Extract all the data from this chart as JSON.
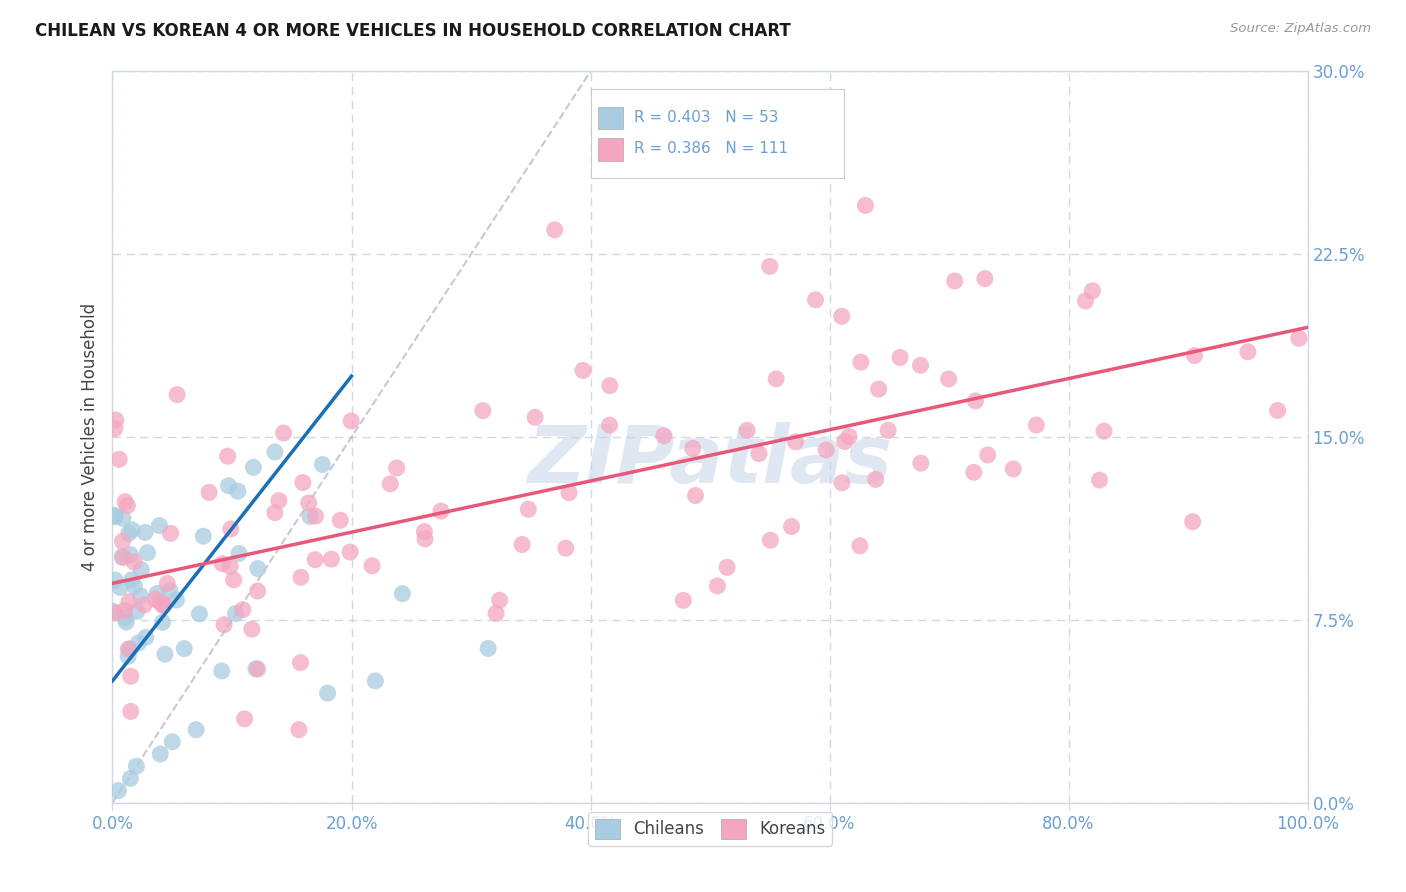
{
  "title": "CHILEAN VS KOREAN 4 OR MORE VEHICLES IN HOUSEHOLD CORRELATION CHART",
  "source": "Source: ZipAtlas.com",
  "ylabel_label": "4 or more Vehicles in Household",
  "legend_label1": "Chileans",
  "legend_label2": "Koreans",
  "r1": 0.403,
  "n1": 53,
  "r2": 0.386,
  "n2": 111,
  "color_chilean": "#a8cce0",
  "color_korean": "#f4a6c0",
  "color_trendline_chilean": "#1a6fb5",
  "color_trendline_korean": "#e8587a",
  "color_diagonal": "#b0b8c8",
  "watermark_text": "ZIPatlas",
  "watermark_color": "#c5d5e8",
  "background_color": "#ffffff",
  "grid_color": "#d0d8e8",
  "tick_color": "#6b9fd4",
  "title_color": "#1a1a1a",
  "ylabel_color": "#444444",
  "source_color": "#999999",
  "x_ticks": [
    0,
    20,
    40,
    60,
    80,
    100
  ],
  "y_ticks": [
    0.0,
    7.5,
    15.0,
    22.5,
    30.0
  ],
  "xlim": [
    0,
    100
  ],
  "ylim": [
    0,
    30
  ],
  "chi_trendline_x0": 0.0,
  "chi_trendline_y0": 5.0,
  "chi_trendline_x1": 20.0,
  "chi_trendline_y1": 17.5,
  "kor_trendline_x0": 0.0,
  "kor_trendline_y0": 9.0,
  "kor_trendline_x1": 100.0,
  "kor_trendline_y1": 19.5,
  "diag_x0": 0,
  "diag_y0": 0,
  "diag_x1": 40,
  "diag_y1": 30
}
